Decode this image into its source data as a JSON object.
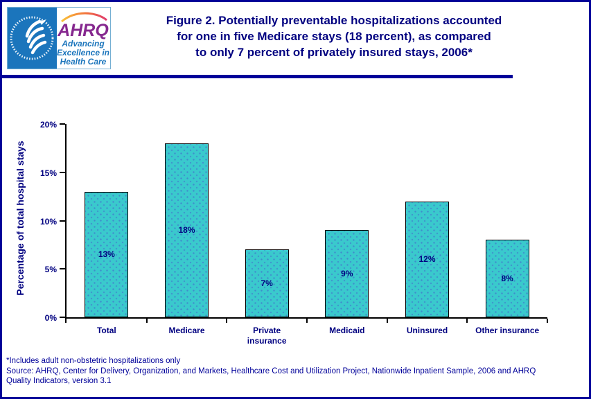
{
  "header": {
    "title_lines": [
      "Figure 2. Potentially preventable hospitalizations accounted",
      "for one in five Medicare stays (18 percent), as compared",
      "to only 7 percent of privately insured stays, 2006*"
    ],
    "logo": {
      "ahrq_text": "AHRQ",
      "tagline_lines": [
        "Advancing",
        "Excellence in",
        "Health Care"
      ]
    }
  },
  "chart_data": {
    "type": "bar",
    "title": "Figure 2. Potentially preventable hospitalizations accounted for one in five Medicare stays (18 percent), as compared to only 7 percent of privately insured stays, 2006*",
    "xlabel": "",
    "ylabel": "Percentage of total hospital stays",
    "ylim": [
      0,
      20
    ],
    "yticks": [
      "0%",
      "5%",
      "10%",
      "15%",
      "20%"
    ],
    "grid": false,
    "legend_position": "none",
    "categories": [
      "Total",
      "Medicare",
      "Private insurance",
      "Medicaid",
      "Uninsured",
      "Other insurance"
    ],
    "categories_wrapped": [
      [
        "Total"
      ],
      [
        "Medicare"
      ],
      [
        "Private",
        "insurance"
      ],
      [
        "Medicaid"
      ],
      [
        "Uninsured"
      ],
      [
        "Other insurance"
      ]
    ],
    "values": [
      13,
      18,
      7,
      9,
      12,
      8
    ],
    "bar_labels": [
      "13%",
      "18%",
      "7%",
      "9%",
      "12%",
      "8%"
    ],
    "bar_color": "#3AC9CD",
    "bar_border_color": "#000000",
    "label_color": "#000080"
  },
  "footer": {
    "note": "*Includes adult non-obstetric hospitalizations only",
    "source_lines": [
      "Source: AHRQ, Center for Delivery, Organization, and Markets, Healthcare Cost and Utilization Project, Nationwide Inpatient Sample, 2006 and AHRQ",
      "Quality Indicators, version 3.1"
    ]
  },
  "colors": {
    "page_border": "#000099",
    "title_text": "#000080",
    "footer_text": "#000099",
    "bar_fill": "#3AC9CD",
    "logo_blue": "#1B75BC",
    "ahrq_purple": "#86288F"
  }
}
